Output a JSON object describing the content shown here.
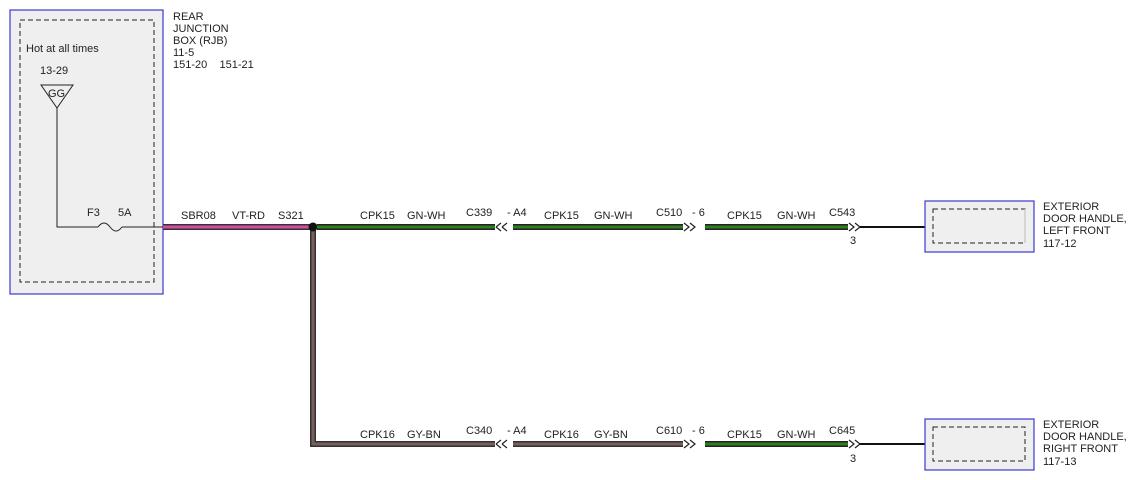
{
  "rjb": {
    "title": [
      "REAR",
      "JUNCTION",
      "BOX (RJB)"
    ],
    "refs": [
      "11-5",
      "151-20    151-21"
    ],
    "hot_label": "Hot at all times",
    "bus_ref": "13-29",
    "bus_label": "GG",
    "fuse_name": "F3",
    "fuse_rating": "5A"
  },
  "wires": {
    "feed": {
      "circuit": "SBR08",
      "color": "VT-RD"
    },
    "splice": "S321",
    "top_1": {
      "circuit": "CPK15",
      "color": "GN-WH"
    },
    "top_2": {
      "circuit": "CPK15",
      "color": "GN-WH"
    },
    "top_3": {
      "circuit": "CPK15",
      "color": "GN-WH"
    },
    "bot_1": {
      "circuit": "CPK16",
      "color": "GY-BN"
    },
    "bot_2": {
      "circuit": "CPK16",
      "color": "GY-BN"
    },
    "bot_3": {
      "circuit": "CPK15",
      "color": "GN-WH"
    }
  },
  "connectors": {
    "c339": {
      "name": "C339",
      "pin": "- A4"
    },
    "c510": {
      "name": "C510",
      "pin": "- 6"
    },
    "c543": {
      "name": "C543",
      "pin": "3"
    },
    "c340": {
      "name": "C340",
      "pin": "- A4"
    },
    "c610": {
      "name": "C610",
      "pin": "- 6"
    },
    "c645": {
      "name": "C645",
      "pin": "3"
    }
  },
  "components": {
    "left_front": {
      "lines": [
        "EXTERIOR",
        "DOOR HANDLE,",
        "LEFT FRONT"
      ],
      "ref": "117-12"
    },
    "right_front": {
      "lines": [
        "EXTERIOR",
        "DOOR HANDLE,",
        "RIGHT FRONT"
      ],
      "ref": "117-13"
    }
  },
  "colors": {
    "box_border": "#3b3bd1",
    "box_fill": "#efefef",
    "feed_wire": "#d94aa6",
    "green_wire": "#2e7d1e",
    "brown_wire": "#7a5e5a"
  }
}
